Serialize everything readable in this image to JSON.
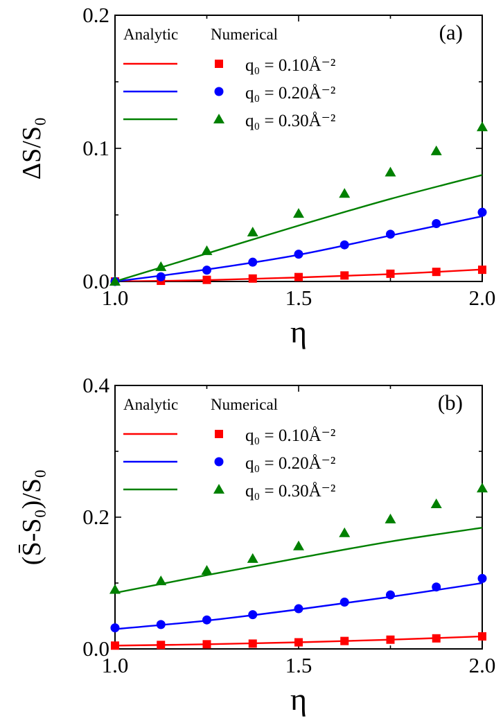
{
  "chart_data": [
    {
      "type": "line",
      "panel_label": "(a)",
      "xlabel": "η",
      "ylabel": "ΔS/S₀",
      "xlim": [
        1.0,
        2.0
      ],
      "ylim": [
        0.0,
        0.2
      ],
      "xticks": [
        "1.0",
        "1.5",
        "2.0"
      ],
      "xtick_values": [
        1.0,
        1.5,
        2.0
      ],
      "yticks": [
        "0.0",
        "0.1",
        "0.2"
      ],
      "ytick_values": [
        0.0,
        0.1,
        0.2
      ],
      "legend_headers": [
        "Analytic",
        "Numerical"
      ],
      "legend_position": "top-left",
      "series": [
        {
          "name": "q₀ = 0.10Å⁻²",
          "color": "#ff0000",
          "marker": "square",
          "analytic": {
            "x": [
              1.0,
              1.25,
              1.5,
              1.75,
              2.0
            ],
            "y": [
              0.0,
              0.001,
              0.003,
              0.0055,
              0.009
            ]
          },
          "numerical": {
            "x": [
              1.0,
              1.125,
              1.25,
              1.375,
              1.5,
              1.625,
              1.75,
              1.875,
              2.0
            ],
            "y": [
              0.0,
              0.0005,
              0.0012,
              0.0022,
              0.0033,
              0.0045,
              0.0058,
              0.0072,
              0.0088
            ]
          }
        },
        {
          "name": "q₀ = 0.20Å⁻²",
          "color": "#0000ff",
          "marker": "circle",
          "analytic": {
            "x": [
              1.0,
              1.25,
              1.5,
              1.75,
              2.0
            ],
            "y": [
              0.0,
              0.009,
              0.02,
              0.0345,
              0.049
            ]
          },
          "numerical": {
            "x": [
              1.0,
              1.125,
              1.25,
              1.375,
              1.5,
              1.625,
              1.75,
              1.875,
              2.0
            ],
            "y": [
              0.0,
              0.0035,
              0.0085,
              0.0145,
              0.0205,
              0.0275,
              0.0355,
              0.0435,
              0.052
            ]
          }
        },
        {
          "name": "q₀ = 0.30Å⁻²",
          "color": "#008000",
          "marker": "triangle",
          "analytic": {
            "x": [
              1.0,
              1.25,
              1.5,
              1.75,
              2.0
            ],
            "y": [
              0.0,
              0.021,
              0.042,
              0.062,
              0.08
            ]
          },
          "numerical": {
            "x": [
              1.0,
              1.125,
              1.25,
              1.375,
              1.5,
              1.625,
              1.75,
              1.875,
              2.0
            ],
            "y": [
              0.0,
              0.011,
              0.023,
              0.037,
              0.051,
              0.066,
              0.082,
              0.098,
              0.116
            ]
          }
        }
      ]
    },
    {
      "type": "line",
      "panel_label": "(b)",
      "xlabel": "η",
      "ylabel": "(S̄-S₀)/S₀",
      "xlim": [
        1.0,
        2.0
      ],
      "ylim": [
        0.0,
        0.4
      ],
      "xticks": [
        "1.0",
        "1.5",
        "2.0"
      ],
      "xtick_values": [
        1.0,
        1.5,
        2.0
      ],
      "yticks": [
        "0.0",
        "0.2",
        "0.4"
      ],
      "ytick_values": [
        0.0,
        0.2,
        0.4
      ],
      "legend_headers": [
        "Analytic",
        "Numerical"
      ],
      "legend_position": "top-left",
      "series": [
        {
          "name": "q₀ = 0.10Å⁻²",
          "color": "#ff0000",
          "marker": "square",
          "analytic": {
            "x": [
              1.0,
              1.25,
              1.5,
              1.75,
              2.0
            ],
            "y": [
              0.005,
              0.007,
              0.01,
              0.014,
              0.019
            ]
          },
          "numerical": {
            "x": [
              1.0,
              1.125,
              1.25,
              1.375,
              1.5,
              1.625,
              1.75,
              1.875,
              2.0
            ],
            "y": [
              0.005,
              0.006,
              0.007,
              0.008,
              0.01,
              0.012,
              0.014,
              0.016,
              0.019
            ]
          }
        },
        {
          "name": "q₀ = 0.20Å⁻²",
          "color": "#0000ff",
          "marker": "circle",
          "analytic": {
            "x": [
              1.0,
              1.25,
              1.5,
              1.75,
              2.0
            ],
            "y": [
              0.03,
              0.043,
              0.06,
              0.079,
              0.1
            ]
          },
          "numerical": {
            "x": [
              1.0,
              1.125,
              1.25,
              1.375,
              1.5,
              1.625,
              1.75,
              1.875,
              2.0
            ],
            "y": [
              0.032,
              0.037,
              0.044,
              0.052,
              0.061,
              0.071,
              0.082,
              0.094,
              0.107
            ]
          }
        },
        {
          "name": "q₀ = 0.30Å⁻²",
          "color": "#008000",
          "marker": "triangle",
          "analytic": {
            "x": [
              1.0,
              1.25,
              1.5,
              1.75,
              2.0
            ],
            "y": [
              0.085,
              0.112,
              0.138,
              0.163,
              0.184
            ]
          },
          "numerical": {
            "x": [
              1.0,
              1.125,
              1.25,
              1.375,
              1.5,
              1.625,
              1.75,
              1.875,
              2.0
            ],
            "y": [
              0.09,
              0.103,
              0.119,
              0.137,
              0.156,
              0.176,
              0.197,
              0.22,
              0.244
            ]
          }
        }
      ]
    }
  ]
}
